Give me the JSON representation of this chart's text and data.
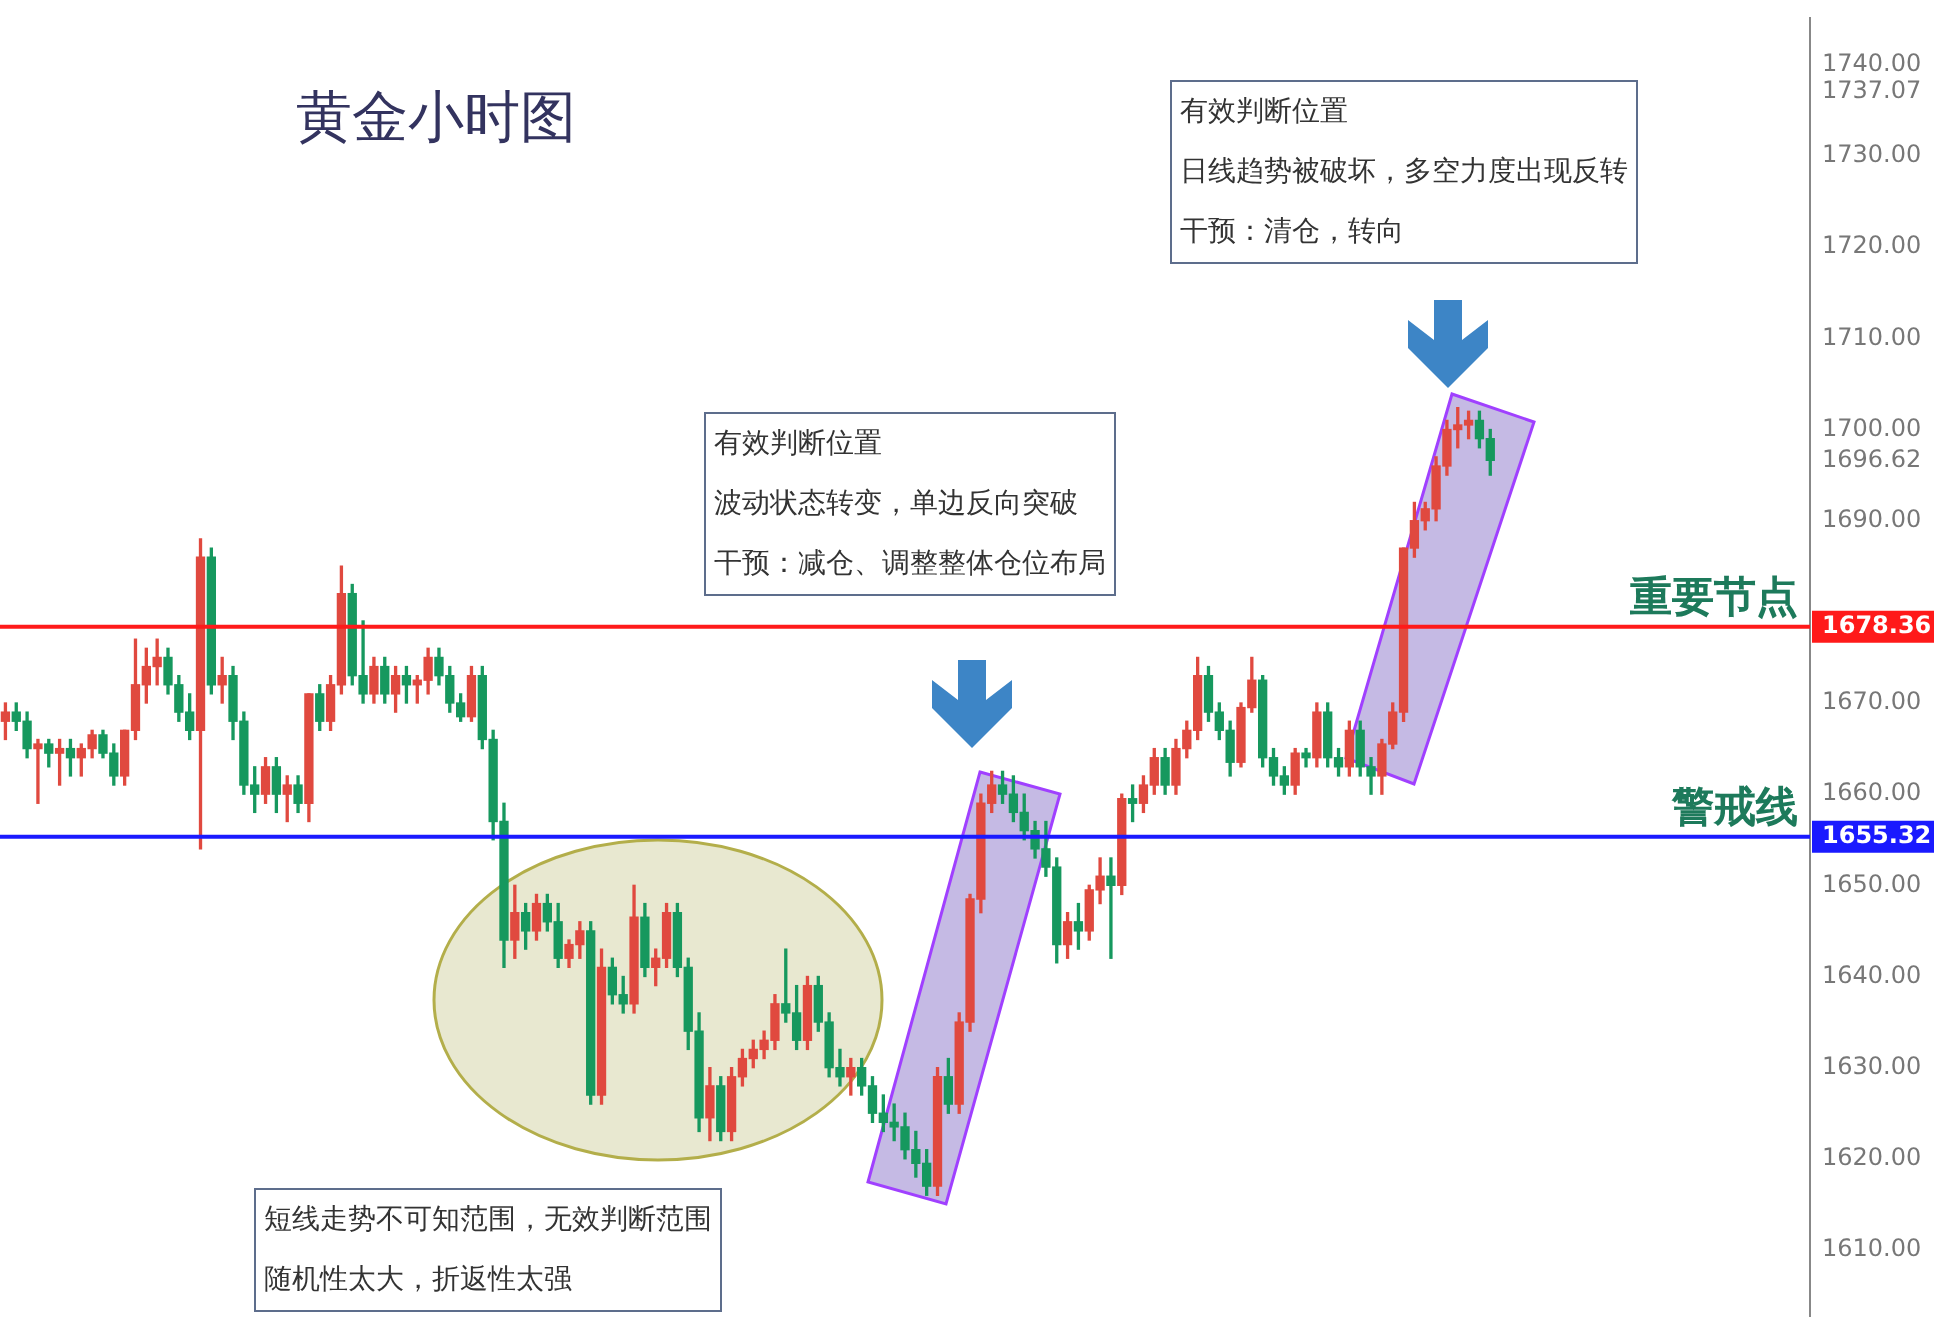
{
  "chart_data": {
    "type": "candlestick",
    "title": "黄金小时图",
    "categories": [
      null,
      null,
      null,
      null,
      null,
      null,
      null,
      null,
      null,
      null,
      null,
      null,
      null,
      null,
      null,
      null,
      null,
      null,
      null,
      null,
      null,
      null,
      null,
      null,
      null,
      null,
      null,
      null,
      null,
      null,
      null,
      null,
      null,
      null,
      null,
      null,
      null,
      null,
      null,
      null,
      null,
      null,
      null,
      null,
      null,
      null,
      null,
      null,
      null,
      null,
      null,
      null,
      null,
      null,
      null,
      null,
      null,
      null,
      null,
      null,
      null,
      null,
      null,
      null,
      null,
      null,
      null,
      null,
      null,
      null,
      null,
      null,
      null,
      null,
      null,
      null,
      null,
      null,
      null,
      null,
      null,
      null,
      null,
      null,
      null,
      null,
      null,
      null,
      null,
      null,
      null,
      null,
      null,
      null,
      null,
      null,
      null,
      null,
      null,
      null,
      null,
      null,
      null,
      null,
      null,
      null,
      null,
      null,
      null,
      null,
      null,
      null,
      null,
      null,
      null,
      null,
      null,
      null,
      null,
      null,
      null,
      null,
      null,
      null,
      null,
      null,
      null,
      null,
      null,
      null,
      null,
      null,
      null,
      null,
      null,
      null,
      null,
      null,
      null,
      null,
      null,
      null,
      null,
      null,
      null,
      null,
      null,
      null,
      null,
      null,
      null,
      null,
      null,
      null,
      null,
      null,
      null,
      null,
      null,
      null,
      null,
      null,
      null,
      null,
      null,
      null,
      null
    ],
    "ohlc": [
      [
        1668,
        1670,
        1666,
        1669
      ],
      [
        1669,
        1670,
        1667,
        1668
      ],
      [
        1668,
        1669,
        1664,
        1665
      ],
      [
        1665,
        1666,
        1659,
        1665.5
      ],
      [
        1665.5,
        1666,
        1663,
        1664.5
      ],
      [
        1664.5,
        1666,
        1661,
        1665
      ],
      [
        1665,
        1666,
        1662,
        1664
      ],
      [
        1664,
        1665.5,
        1662,
        1665
      ],
      [
        1665,
        1667,
        1664,
        1666.5
      ],
      [
        1666.5,
        1667,
        1664,
        1664.5
      ],
      [
        1664.5,
        1665.5,
        1661,
        1662
      ],
      [
        1662,
        1667,
        1661,
        1667
      ],
      [
        1667,
        1677,
        1666,
        1672
      ],
      [
        1672,
        1676,
        1670,
        1674
      ],
      [
        1674,
        1677,
        1672,
        1675
      ],
      [
        1675,
        1676,
        1671,
        1672
      ],
      [
        1672,
        1673,
        1668,
        1669
      ],
      [
        1669,
        1671,
        1666,
        1667
      ],
      [
        1667,
        1688,
        1654,
        1686
      ],
      [
        1686,
        1687,
        1671,
        1672
      ],
      [
        1672,
        1675,
        1670,
        1673
      ],
      [
        1673,
        1674,
        1666,
        1668
      ],
      [
        1668,
        1669,
        1660,
        1661
      ],
      [
        1661,
        1663,
        1658,
        1660
      ],
      [
        1660,
        1664,
        1659,
        1663
      ],
      [
        1663,
        1664,
        1658,
        1660
      ],
      [
        1660,
        1662,
        1657,
        1661
      ],
      [
        1661,
        1662,
        1658,
        1659
      ],
      [
        1659,
        1671,
        1657,
        1671
      ],
      [
        1671,
        1672,
        1667,
        1668
      ],
      [
        1668,
        1673,
        1667,
        1672
      ],
      [
        1672,
        1685,
        1671,
        1682
      ],
      [
        1682,
        1683,
        1672,
        1673
      ],
      [
        1673,
        1679,
        1670,
        1671
      ],
      [
        1671,
        1675,
        1670,
        1674
      ],
      [
        1674,
        1675,
        1670,
        1671
      ],
      [
        1671,
        1674,
        1669,
        1673
      ],
      [
        1673,
        1674,
        1670,
        1672
      ],
      [
        1672,
        1673,
        1670,
        1672.5
      ],
      [
        1672.5,
        1676,
        1671,
        1675
      ],
      [
        1675,
        1676,
        1672,
        1673
      ],
      [
        1673,
        1674,
        1669,
        1670
      ],
      [
        1670,
        1671,
        1668,
        1668.5
      ],
      [
        1668.5,
        1674,
        1668,
        1673
      ],
      [
        1673,
        1674,
        1665,
        1666
      ],
      [
        1666,
        1667,
        1655,
        1657
      ],
      [
        1657,
        1659,
        1641,
        1644
      ],
      [
        1644,
        1650,
        1642,
        1647
      ],
      [
        1647,
        1648,
        1643,
        1645
      ],
      [
        1645,
        1649,
        1644,
        1648
      ],
      [
        1648,
        1649,
        1645,
        1646
      ],
      [
        1646,
        1648,
        1641,
        1642
      ],
      [
        1642,
        1644,
        1641,
        1643.5
      ],
      [
        1643.5,
        1646,
        1642,
        1645
      ],
      [
        1645,
        1646,
        1626,
        1627
      ],
      [
        1627,
        1643,
        1626,
        1641
      ],
      [
        1641,
        1642,
        1637,
        1638
      ],
      [
        1638,
        1640,
        1636,
        1637
      ],
      [
        1637,
        1650,
        1636,
        1646.5
      ],
      [
        1646.5,
        1648,
        1640,
        1641
      ],
      [
        1641,
        1643,
        1639,
        1642
      ],
      [
        1642,
        1648,
        1641,
        1647
      ],
      [
        1647,
        1648,
        1640,
        1641
      ],
      [
        1641,
        1642,
        1632,
        1634
      ],
      [
        1634,
        1636,
        1623,
        1624.5
      ],
      [
        1624.5,
        1630,
        1622,
        1628
      ],
      [
        1628,
        1629,
        1622,
        1623
      ],
      [
        1623,
        1630,
        1622,
        1629
      ],
      [
        1629,
        1632,
        1628,
        1631
      ],
      [
        1631,
        1633,
        1630,
        1632
      ],
      [
        1632,
        1634,
        1631,
        1633
      ],
      [
        1633,
        1638,
        1632,
        1637
      ],
      [
        1637,
        1643,
        1635,
        1636
      ],
      [
        1636,
        1639,
        1632,
        1633
      ],
      [
        1633,
        1640,
        1632,
        1639
      ],
      [
        1639,
        1640,
        1634,
        1635
      ],
      [
        1635,
        1636,
        1629,
        1630
      ],
      [
        1630,
        1632,
        1628,
        1629
      ],
      [
        1629,
        1631,
        1627,
        1630
      ],
      [
        1630,
        1631,
        1627,
        1628
      ],
      [
        1628,
        1629,
        1624,
        1625
      ],
      [
        1625,
        1627,
        1623,
        1624
      ],
      [
        1624,
        1626,
        1622,
        1623.5
      ],
      [
        1623.5,
        1625,
        1620,
        1621
      ],
      [
        1621,
        1623,
        1618,
        1619.5
      ],
      [
        1619.5,
        1621,
        1616,
        1617
      ],
      [
        1617,
        1630,
        1616,
        1629
      ],
      [
        1629,
        1631,
        1625,
        1626
      ],
      [
        1626,
        1636,
        1625,
        1635
      ],
      [
        1635,
        1649,
        1634,
        1648.5
      ],
      [
        1648.5,
        1660,
        1647,
        1659
      ],
      [
        1659,
        1662.5,
        1658,
        1661
      ],
      [
        1661,
        1662.5,
        1659,
        1660
      ],
      [
        1660,
        1662,
        1657,
        1658
      ],
      [
        1658,
        1660,
        1655,
        1656
      ],
      [
        1656,
        1657,
        1653,
        1654
      ],
      [
        1654,
        1657,
        1651,
        1652
      ],
      [
        1652,
        1653,
        1641.5,
        1643.5
      ],
      [
        1643.5,
        1647,
        1642,
        1646
      ],
      [
        1646,
        1648,
        1643,
        1645
      ],
      [
        1645,
        1650,
        1644,
        1649.5
      ],
      [
        1649.5,
        1653,
        1648,
        1651
      ],
      [
        1651,
        1653,
        1642,
        1650
      ],
      [
        1650,
        1660,
        1649,
        1659.5
      ],
      [
        1659.5,
        1661,
        1657,
        1659
      ],
      [
        1659,
        1662,
        1658,
        1661
      ],
      [
        1661,
        1665,
        1660,
        1664
      ],
      [
        1664,
        1665,
        1660,
        1661
      ],
      [
        1661,
        1666,
        1660,
        1665
      ],
      [
        1665,
        1668,
        1664,
        1667
      ],
      [
        1667,
        1675,
        1666,
        1673
      ],
      [
        1673,
        1674,
        1668,
        1669
      ],
      [
        1669,
        1670,
        1666,
        1667
      ],
      [
        1667,
        1668,
        1662,
        1663.5
      ],
      [
        1663.5,
        1670,
        1663,
        1669.5
      ],
      [
        1669.5,
        1675,
        1669,
        1672.5
      ],
      [
        1672.5,
        1673,
        1663,
        1664
      ],
      [
        1664,
        1665,
        1661,
        1662
      ],
      [
        1662,
        1663,
        1660,
        1661
      ],
      [
        1661,
        1665,
        1660,
        1664.5
      ],
      [
        1664.5,
        1665,
        1663,
        1664
      ],
      [
        1664,
        1670,
        1663,
        1669
      ],
      [
        1669,
        1670,
        1663,
        1664
      ],
      [
        1664,
        1665,
        1662,
        1663
      ],
      [
        1663,
        1668,
        1662,
        1667
      ],
      [
        1667,
        1668,
        1662,
        1663
      ],
      [
        1663,
        1664,
        1660,
        1662
      ],
      [
        1662,
        1666,
        1660,
        1665.5
      ],
      [
        1665.5,
        1670,
        1665,
        1669
      ],
      [
        1669,
        1687,
        1668,
        1687
      ],
      [
        1687,
        1692,
        1686,
        1690
      ],
      [
        1690,
        1692,
        1689,
        1691.3
      ],
      [
        1691.3,
        1697,
        1690,
        1696
      ],
      [
        1696,
        1701,
        1695,
        1700
      ],
      [
        1700,
        1702.4,
        1698,
        1700.5
      ],
      [
        1700.5,
        1702,
        1699,
        1701
      ],
      [
        1701,
        1702,
        1698,
        1699
      ],
      [
        1699,
        1700,
        1695,
        1696.62
      ],
      null,
      null,
      null,
      null,
      null,
      null,
      null,
      null,
      null,
      null,
      null,
      null,
      null,
      null,
      null,
      null,
      null,
      null,
      null,
      null,
      null,
      null,
      null,
      null,
      null,
      null,
      null,
      null,
      null
    ],
    "colors": [
      "#e0493f",
      "#16985e",
      "#16985e",
      "#e0493f",
      "#16985e",
      "#e0493f",
      "#16985e",
      "#e0493f",
      "#e0493f",
      "#16985e",
      "#16985e",
      "#e0493f",
      "#e0493f",
      "#e0493f",
      "#e0493f",
      "#16985e",
      "#16985e",
      "#16985e",
      "#e0493f",
      "#16985e",
      "#e0493f",
      "#16985e",
      "#16985e",
      "#16985e",
      "#e0493f",
      "#16985e",
      "#e0493f",
      "#16985e",
      "#e0493f",
      "#16985e",
      "#e0493f",
      "#e0493f",
      "#16985e",
      "#16985e",
      "#e0493f",
      "#16985e",
      "#e0493f",
      "#16985e",
      "#e0493f",
      "#e0493f",
      "#16985e",
      "#16985e",
      "#16985e",
      "#e0493f",
      "#16985e",
      "#16985e",
      "#16985e",
      "#e0493f",
      "#16985e",
      "#e0493f",
      "#16985e",
      "#16985e",
      "#e0493f",
      "#e0493f",
      "#16985e",
      "#e0493f",
      "#16985e",
      "#16985e",
      "#e0493f",
      "#16985e",
      "#e0493f",
      "#e0493f",
      "#16985e",
      "#16985e",
      "#16985e",
      "#e0493f",
      "#16985e",
      "#e0493f",
      "#e0493f",
      "#e0493f",
      "#e0493f",
      "#e0493f",
      "#16985e",
      "#16985e",
      "#e0493f",
      "#16985e",
      "#16985e",
      "#16985e",
      "#e0493f",
      "#16985e",
      "#16985e",
      "#16985e",
      "#16985e",
      "#16985e",
      "#16985e",
      "#16985e",
      "#e0493f",
      "#16985e",
      "#e0493f",
      "#e0493f",
      "#e0493f",
      "#e0493f",
      "#16985e",
      "#16985e",
      "#16985e",
      "#16985e",
      "#16985e",
      "#16985e",
      "#e0493f",
      "#16985e",
      "#e0493f",
      "#e0493f",
      "#16985e",
      "#e0493f",
      "#16985e",
      "#e0493f",
      "#e0493f",
      "#16985e",
      "#e0493f",
      "#e0493f",
      "#e0493f",
      "#16985e",
      "#16985e",
      "#16985e",
      "#e0493f",
      "#e0493f",
      "#16985e",
      "#16985e",
      "#16985e",
      "#e0493f",
      "#16985e",
      "#e0493f",
      "#16985e",
      "#16985e",
      "#e0493f",
      "#16985e",
      "#16985e",
      "#e0493f",
      "#e0493f",
      "#e0493f",
      "#e0493f",
      "#e0493f",
      "#e0493f",
      "#e0493f",
      "#e0493f",
      "#e0493f",
      "#16985e",
      "#16985e",
      null,
      null,
      null,
      null,
      null,
      null,
      null,
      null,
      null,
      null,
      null,
      null,
      null,
      null,
      null,
      null,
      null,
      null,
      null,
      null,
      null,
      null,
      null,
      null,
      null,
      null,
      null,
      null,
      null
    ],
    "ylim": [
      1602.8,
      1745.1
    ],
    "yticks": [
      {
        "value": 1610,
        "label": "1610.00"
      },
      {
        "value": 1620,
        "label": "1620.00"
      },
      {
        "value": 1630,
        "label": "1630.00"
      },
      {
        "value": 1640,
        "label": "1640.00"
      },
      {
        "value": 1650,
        "label": "1650.00"
      },
      {
        "value": 1660,
        "label": "1660.00"
      },
      {
        "value": 1670,
        "label": "1670.00"
      },
      {
        "value": 1655.32,
        "label": "1655.32"
      },
      {
        "value": 1678.36,
        "label": "1678.36"
      },
      {
        "value": 1690,
        "label": "1690.00"
      },
      {
        "value": 1696.62,
        "label": "1696.62"
      },
      {
        "value": 1700,
        "label": "1700.00"
      },
      {
        "value": 1710,
        "label": "1710.00"
      },
      {
        "value": 1720,
        "label": "1720.00"
      },
      {
        "value": 1730,
        "label": "1730.00"
      },
      {
        "value": 1737.07,
        "label": "1737.07"
      },
      {
        "value": 1740,
        "label": "1740.00"
      }
    ],
    "ref_lines": [
      {
        "axis": "y",
        "value": 1678.36,
        "label": "重要节点",
        "color": "#ff1a1a"
      },
      {
        "axis": "y",
        "value": 1655.32,
        "label": "警戒线",
        "color": "#1a1aff"
      }
    ],
    "annotations": [
      "有效判断位置",
      "波动状态转变，单边反向突破",
      "干预：减仓、调整整体仓位布局",
      "有效判断位置",
      "日线趋势被破坏，多空力度出现反转",
      "干预：清仓，转向",
      "短线走势不可知范围，无效判断范围",
      "随机性太大，折返性太强"
    ],
    "grid": false,
    "legend": false,
    "tick_labels": "y"
  }
}
